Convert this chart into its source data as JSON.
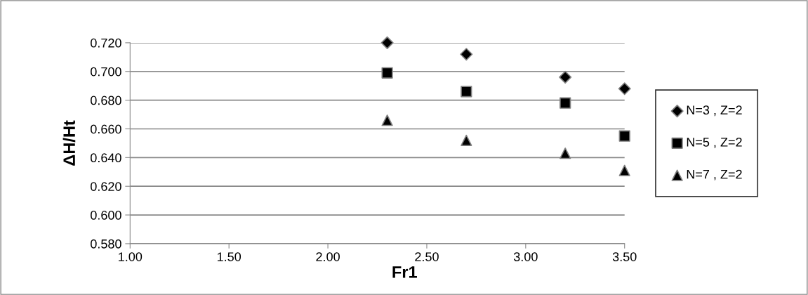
{
  "chart_data": {
    "type": "scatter",
    "xlabel": "Fr1",
    "ylabel": "ΔH/Ht",
    "x": [
      2.3,
      2.7,
      3.2,
      3.5
    ],
    "series": [
      {
        "name": "N=3 , Z=2",
        "color": "#000000",
        "marker": "diamond",
        "values": [
          0.72,
          0.712,
          0.696,
          0.688
        ]
      },
      {
        "name": "N=5 , Z=2",
        "color": "#000000",
        "marker": "square",
        "values": [
          0.699,
          0.686,
          0.678,
          0.655
        ]
      },
      {
        "name": "N=7 , Z=2",
        "color": "#000000",
        "marker": "triangle",
        "values": [
          0.666,
          0.652,
          0.643,
          0.631
        ]
      }
    ],
    "xlim": [
      1.0,
      3.5
    ],
    "xticks": [
      {
        "value": 1.0,
        "label": "1.00"
      },
      {
        "value": 1.5,
        "label": "1.50"
      },
      {
        "value": 2.0,
        "label": "2.00"
      },
      {
        "value": 2.5,
        "label": "2.50"
      },
      {
        "value": 3.0,
        "label": "3.00"
      },
      {
        "value": 3.5,
        "label": "3.50"
      }
    ],
    "ylim": [
      0.58,
      0.72
    ],
    "yticks": [
      {
        "value": 0.58,
        "label": "0.580"
      },
      {
        "value": 0.6,
        "label": "0.600"
      },
      {
        "value": 0.62,
        "label": "0.620"
      },
      {
        "value": 0.64,
        "label": "0.640"
      },
      {
        "value": 0.66,
        "label": "0.660"
      },
      {
        "value": 0.68,
        "label": "0.680"
      },
      {
        "value": 0.7,
        "label": "0.700"
      },
      {
        "value": 0.72,
        "label": "0.720"
      }
    ],
    "grid": "y",
    "legend": "right"
  }
}
